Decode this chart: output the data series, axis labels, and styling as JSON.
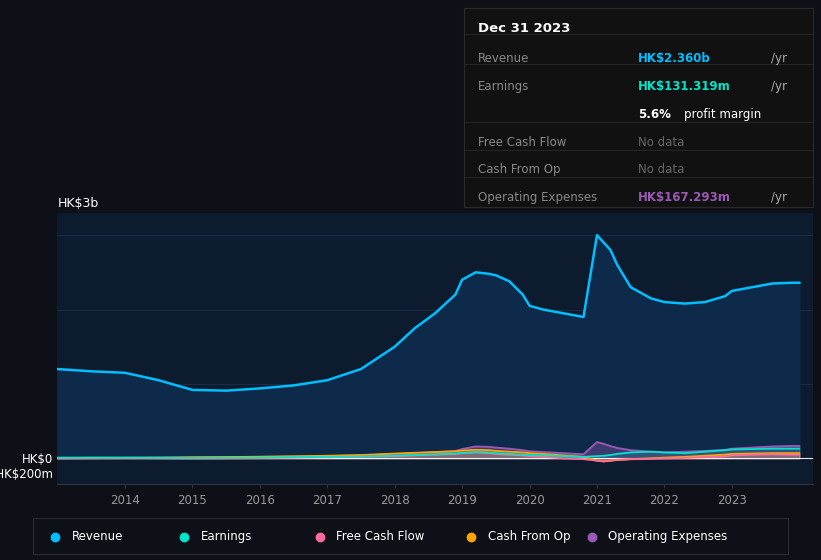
{
  "bg_color": "#0d1117",
  "plot_bg_color": "#0d1b2e",
  "grid_color": "#1e3a5f",
  "years": [
    2013.0,
    2013.5,
    2014.0,
    2014.5,
    2015.0,
    2015.5,
    2016.0,
    2016.5,
    2017.0,
    2017.5,
    2018.0,
    2018.3,
    2018.6,
    2018.9,
    2019.0,
    2019.2,
    2019.4,
    2019.5,
    2019.7,
    2019.9,
    2020.0,
    2020.2,
    2020.5,
    2020.8,
    2021.0,
    2021.1,
    2021.2,
    2021.3,
    2021.5,
    2021.8,
    2022.0,
    2022.3,
    2022.6,
    2022.9,
    2023.0,
    2023.3,
    2023.6,
    2023.9,
    2024.0
  ],
  "revenue": [
    1200,
    1170,
    1150,
    1050,
    920,
    910,
    940,
    980,
    1050,
    1200,
    1500,
    1750,
    1950,
    2200,
    2400,
    2500,
    2480,
    2460,
    2380,
    2200,
    2050,
    2000,
    1950,
    1900,
    3000,
    2900,
    2800,
    2600,
    2300,
    2150,
    2100,
    2080,
    2100,
    2180,
    2250,
    2300,
    2350,
    2360,
    2360
  ],
  "earnings": [
    10,
    10,
    10,
    8,
    5,
    8,
    10,
    15,
    20,
    25,
    35,
    45,
    55,
    65,
    75,
    85,
    80,
    70,
    60,
    50,
    45,
    40,
    30,
    20,
    30,
    35,
    45,
    60,
    80,
    90,
    80,
    70,
    90,
    110,
    120,
    125,
    131,
    131,
    131
  ],
  "free_cash_flow": [
    0,
    2,
    5,
    2,
    -2,
    0,
    5,
    10,
    15,
    20,
    30,
    40,
    50,
    60,
    70,
    80,
    70,
    60,
    50,
    40,
    30,
    20,
    0,
    -10,
    -30,
    -40,
    -30,
    -20,
    -10,
    -5,
    0,
    5,
    15,
    25,
    40,
    50,
    55,
    50,
    50
  ],
  "cash_from_op": [
    5,
    8,
    8,
    10,
    15,
    18,
    22,
    28,
    35,
    45,
    65,
    75,
    85,
    95,
    105,
    115,
    110,
    100,
    90,
    80,
    70,
    60,
    40,
    20,
    -30,
    -40,
    -30,
    -20,
    -10,
    0,
    10,
    20,
    35,
    50,
    60,
    65,
    70,
    70,
    70
  ],
  "op_expenses": [
    5,
    8,
    8,
    10,
    12,
    15,
    20,
    25,
    30,
    40,
    55,
    70,
    85,
    100,
    125,
    160,
    155,
    145,
    130,
    110,
    95,
    85,
    70,
    55,
    220,
    195,
    165,
    140,
    110,
    90,
    80,
    90,
    100,
    115,
    130,
    145,
    160,
    167,
    167
  ],
  "revenue_color": "#00bfff",
  "earnings_color": "#00e5cc",
  "fcf_color": "#ff6b9d",
  "cashop_color": "#ffa500",
  "opex_color": "#9b59b6",
  "ylim_top": 3300,
  "ylim_bottom": -350,
  "xticks": [
    2014,
    2015,
    2016,
    2017,
    2018,
    2019,
    2020,
    2021,
    2022,
    2023
  ],
  "tooltip_bg": "#111111",
  "tooltip_border": "#2a2a2a",
  "revenue_val": "HK$2.360b",
  "earnings_val": "HK$131.319m",
  "profit_margin": "5.6%",
  "opex_val": "HK$167.293m",
  "legend_items": [
    "Revenue",
    "Earnings",
    "Free Cash Flow",
    "Cash From Op",
    "Operating Expenses"
  ],
  "legend_colors": [
    "#00bfff",
    "#00e5cc",
    "#ff6b9d",
    "#ffa500",
    "#9b59b6"
  ]
}
